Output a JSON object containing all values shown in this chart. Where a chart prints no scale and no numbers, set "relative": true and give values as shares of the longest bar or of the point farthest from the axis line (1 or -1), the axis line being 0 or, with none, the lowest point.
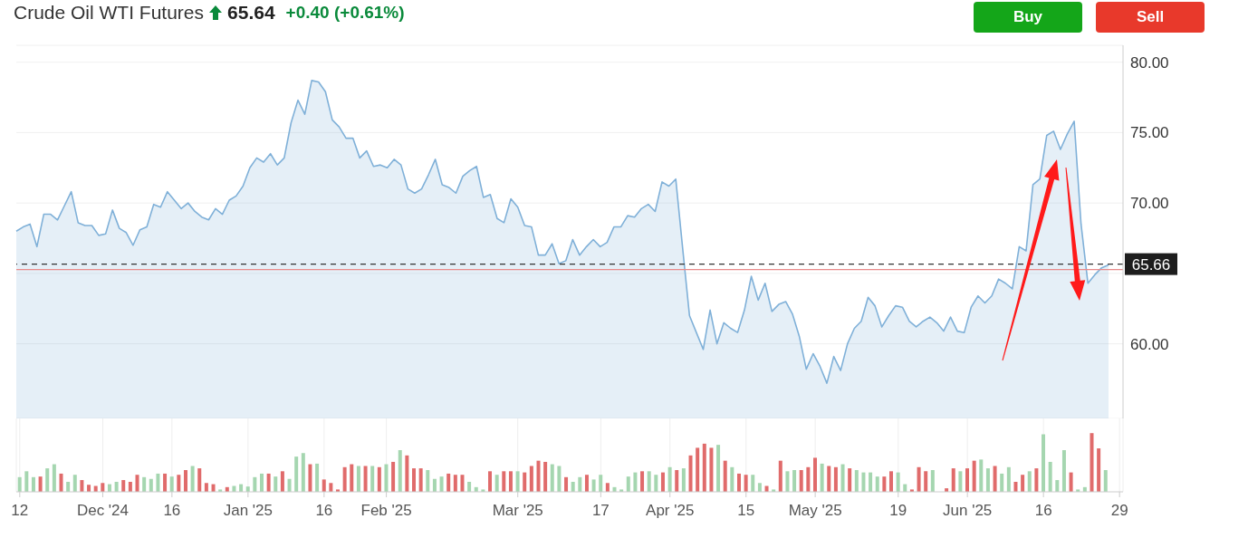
{
  "chart_data": [
    {
      "type": "area",
      "title": "Crude Oil WTI Futures",
      "annotations": [
        "65.64",
        "+0.40 (+0.61%)",
        "Buy",
        "Sell"
      ],
      "categories": [
        null,
        null,
        null,
        null,
        null,
        null,
        null,
        null,
        null,
        null,
        null,
        null,
        null,
        null,
        null,
        null,
        null,
        null,
        null,
        null,
        null,
        null,
        null,
        null,
        null,
        null,
        null,
        null,
        null,
        null,
        null,
        null,
        null,
        null,
        null,
        null,
        null,
        null,
        null,
        null,
        null,
        null,
        null,
        null,
        null,
        null,
        null,
        null,
        null,
        null,
        null,
        null,
        null,
        null,
        null,
        null,
        null,
        null,
        null,
        null,
        null,
        null,
        null,
        null,
        null,
        null,
        null,
        null,
        null,
        null,
        null,
        null,
        null,
        null,
        null,
        null,
        null,
        null,
        null,
        null,
        null,
        null,
        null,
        null,
        null,
        null,
        null,
        null,
        null,
        null,
        null,
        null,
        null,
        null,
        null,
        null,
        null,
        null,
        null,
        null,
        null,
        null,
        null,
        null,
        null,
        null,
        null,
        null,
        null,
        null,
        null,
        null,
        null,
        null,
        null,
        null,
        null,
        null,
        null,
        null,
        null,
        null,
        null,
        null,
        null,
        null,
        null,
        null,
        null,
        null,
        null,
        null,
        null,
        null,
        null,
        null,
        null,
        null,
        null,
        null,
        null,
        null,
        null,
        null,
        null,
        null,
        null,
        null,
        null,
        null,
        null,
        null,
        null,
        null,
        null,
        null,
        null,
        null,
        null,
        null
      ],
      "values": [
        68.0,
        68.3,
        68.5,
        66.9,
        69.2,
        69.2,
        68.8,
        69.8,
        70.8,
        68.6,
        68.4,
        68.4,
        67.7,
        67.8,
        69.5,
        68.2,
        67.9,
        67.0,
        68.1,
        68.3,
        69.9,
        69.7,
        70.8,
        70.2,
        69.6,
        70.0,
        69.4,
        69.0,
        68.8,
        69.6,
        69.2,
        70.2,
        70.5,
        71.2,
        72.5,
        73.2,
        72.9,
        73.5,
        72.7,
        73.2,
        75.7,
        77.3,
        76.3,
        78.7,
        78.6,
        77.9,
        75.9,
        75.4,
        74.6,
        74.6,
        73.2,
        73.7,
        72.6,
        72.7,
        72.5,
        73.1,
        72.7,
        71.0,
        70.7,
        71.0,
        72.0,
        73.1,
        71.3,
        71.1,
        70.7,
        71.9,
        72.3,
        72.6,
        70.4,
        70.6,
        68.9,
        68.6,
        70.3,
        69.7,
        68.4,
        68.3,
        66.3,
        66.3,
        67.1,
        65.7,
        65.9,
        67.4,
        66.3,
        66.9,
        67.4,
        66.9,
        67.2,
        68.3,
        68.3,
        69.1,
        69.0,
        69.6,
        69.9,
        69.4,
        71.5,
        71.2,
        71.7,
        66.8,
        62.0,
        60.8,
        59.6,
        62.4,
        60.0,
        61.5,
        61.1,
        60.8,
        62.4,
        64.8,
        63.1,
        64.3,
        62.3,
        62.8,
        63.0,
        62.1,
        60.5,
        58.2,
        59.3,
        58.4,
        57.2,
        59.1,
        58.1,
        60.0,
        61.1,
        61.6,
        63.3,
        62.7,
        61.2,
        62.0,
        62.7,
        62.6,
        61.6,
        61.2,
        61.6,
        61.9,
        61.5,
        60.9,
        61.9,
        60.9,
        60.8,
        62.6,
        63.4,
        62.9,
        63.4,
        64.6,
        64.3,
        63.9,
        66.9,
        66.6,
        71.3,
        71.7,
        74.8,
        75.1,
        73.8,
        74.9,
        75.8,
        68.5,
        64.3,
        64.9,
        65.4,
        65.6
      ],
      "color": "#7fb0d8",
      "ylim": [
        54.7,
        81.2
      ],
      "yticks": [
        {
          "value": 60,
          "label": "60.00"
        },
        {
          "value": 65,
          "label": null
        },
        {
          "value": 70,
          "label": "70.00"
        },
        {
          "value": 75,
          "label": "75.00"
        },
        {
          "value": 80,
          "label": "80.00"
        }
      ],
      "ref_lines": [
        {
          "axis": "y",
          "value": 65.66,
          "label": "65.66",
          "color": "#333333",
          "line_style": "dashed"
        },
        {
          "axis": "y",
          "value": 65.27,
          "color": "#e88a8a",
          "line_style": "solid"
        }
      ],
      "grid": "y",
      "tick_labels": "y"
    },
    {
      "type": "bar",
      "relative": true,
      "categories": [
        "12",
        null,
        null,
        null,
        null,
        null,
        null,
        null,
        null,
        null,
        null,
        null,
        "Dec '24",
        null,
        null,
        null,
        null,
        null,
        null,
        null,
        null,
        null,
        "16",
        null,
        null,
        null,
        null,
        null,
        null,
        null,
        null,
        null,
        null,
        "Jan '25",
        null,
        null,
        null,
        null,
        null,
        null,
        null,
        null,
        null,
        null,
        "16",
        null,
        null,
        null,
        null,
        null,
        null,
        null,
        null,
        "Feb '25",
        null,
        null,
        null,
        null,
        null,
        null,
        null,
        null,
        null,
        null,
        null,
        null,
        null,
        null,
        null,
        null,
        null,
        null,
        "Mar '25",
        null,
        null,
        null,
        null,
        null,
        null,
        null,
        null,
        null,
        null,
        null,
        "17",
        null,
        null,
        null,
        null,
        null,
        null,
        null,
        null,
        null,
        "Apr '25",
        null,
        null,
        null,
        null,
        null,
        null,
        null,
        null,
        null,
        null,
        "15",
        null,
        null,
        null,
        null,
        null,
        null,
        null,
        null,
        null,
        "May '25",
        null,
        null,
        null,
        null,
        null,
        null,
        null,
        null,
        null,
        null,
        null,
        "19",
        null,
        null,
        null,
        null,
        null,
        null,
        null,
        null,
        null,
        "Jun '25",
        null,
        null,
        null,
        null,
        null,
        null,
        null,
        null,
        null,
        null,
        "16",
        null,
        null,
        null,
        null,
        null,
        null,
        null,
        null,
        null,
        null,
        "29"
      ],
      "values": [
        0.25,
        0.35,
        0.25,
        0.26,
        0.4,
        0.47,
        0.31,
        0.17,
        0.29,
        0.2,
        0.12,
        0.1,
        0.15,
        0.13,
        0.17,
        0.2,
        0.17,
        0.29,
        0.25,
        0.22,
        0.31,
        0.31,
        0.26,
        0.29,
        0.37,
        0.44,
        0.4,
        0.15,
        0.13,
        0.04,
        0.08,
        0.1,
        0.13,
        0.09,
        0.25,
        0.31,
        0.31,
        0.26,
        0.35,
        0.22,
        0.6,
        0.66,
        0.47,
        0.48,
        0.21,
        0.15,
        0.04,
        0.42,
        0.47,
        0.44,
        0.44,
        0.44,
        0.42,
        0.47,
        0.51,
        0.71,
        0.62,
        0.4,
        0.4,
        0.37,
        0.22,
        0.26,
        0.31,
        0.29,
        0.29,
        0.17,
        0.08,
        0.04,
        0.35,
        0.29,
        0.35,
        0.35,
        0.35,
        0.33,
        0.44,
        0.53,
        0.51,
        0.47,
        0.44,
        0.25,
        0.17,
        0.25,
        0.29,
        0.21,
        0.29,
        0.15,
        0.08,
        0.04,
        0.26,
        0.33,
        0.35,
        0.35,
        0.29,
        0.33,
        0.42,
        0.37,
        0.4,
        0.62,
        0.75,
        0.82,
        0.75,
        0.8,
        0.53,
        0.42,
        0.31,
        0.29,
        0.29,
        0.15,
        0.1,
        0.04,
        0.53,
        0.35,
        0.37,
        0.37,
        0.42,
        0.58,
        0.48,
        0.44,
        0.42,
        0.47,
        0.4,
        0.37,
        0.33,
        0.33,
        0.26,
        0.26,
        0.35,
        0.33,
        0.13,
        0.04,
        0.42,
        0.35,
        0.37,
        null,
        0.06,
        0.4,
        0.35,
        0.4,
        0.53,
        0.55,
        0.4,
        0.44,
        0.31,
        0.42,
        0.17,
        0.29,
        0.35,
        0.4,
        0.98,
        0.51,
        0.2,
        0.71,
        0.33,
        0.04,
        0.08,
        1,
        0.74,
        0.37,
        null,
        null
      ],
      "colors": [
        "#a5d6b0",
        "#a5d6b0",
        "#a5d6b0",
        "#e06b6b",
        "#a5d6b0",
        "#a5d6b0",
        "#e06b6b",
        "#a5d6b0",
        "#a5d6b0",
        "#e06b6b",
        "#e06b6b",
        "#e06b6b",
        "#e06b6b",
        "#a5d6b0",
        "#a5d6b0",
        "#e06b6b",
        "#e06b6b",
        "#e06b6b",
        "#a5d6b0",
        "#a5d6b0",
        "#a5d6b0",
        "#e06b6b",
        "#a5d6b0",
        "#e06b6b",
        "#e06b6b",
        "#a5d6b0",
        "#e06b6b",
        "#e06b6b",
        "#e06b6b",
        "#a5d6b0",
        "#e06b6b",
        "#a5d6b0",
        "#a5d6b0",
        "#a5d6b0",
        "#a5d6b0",
        "#a5d6b0",
        "#e06b6b",
        "#a5d6b0",
        "#e06b6b",
        "#a5d6b0",
        "#a5d6b0",
        "#a5d6b0",
        "#e06b6b",
        "#a5d6b0",
        "#e06b6b",
        "#e06b6b",
        "#e06b6b",
        "#e06b6b",
        "#e06b6b",
        "#a5d6b0",
        "#e06b6b",
        "#a5d6b0",
        "#e06b6b",
        "#a5d6b0",
        "#e06b6b",
        "#a5d6b0",
        "#e06b6b",
        "#e06b6b",
        "#e06b6b",
        "#a5d6b0",
        "#a5d6b0",
        "#a5d6b0",
        "#e06b6b",
        "#e06b6b",
        "#e06b6b",
        "#a5d6b0",
        "#a5d6b0",
        "#a5d6b0",
        "#e06b6b",
        "#a5d6b0",
        "#e06b6b",
        "#e06b6b",
        "#a5d6b0",
        "#e06b6b",
        "#e06b6b",
        "#e06b6b",
        "#e06b6b",
        "#a5d6b0",
        "#a5d6b0",
        "#e06b6b",
        "#a5d6b0",
        "#a5d6b0",
        "#e06b6b",
        "#a5d6b0",
        "#a5d6b0",
        "#e06b6b",
        "#a5d6b0",
        "#a5d6b0",
        "#a5d6b0",
        "#a5d6b0",
        "#e06b6b",
        "#a5d6b0",
        "#a5d6b0",
        "#e06b6b",
        "#a5d6b0",
        "#e06b6b",
        "#a5d6b0",
        "#e06b6b",
        "#e06b6b",
        "#e06b6b",
        "#e06b6b",
        "#a5d6b0",
        "#e06b6b",
        "#a5d6b0",
        "#e06b6b",
        "#e06b6b",
        "#a5d6b0",
        "#a5d6b0",
        "#e06b6b",
        "#a5d6b0",
        "#e06b6b",
        "#a5d6b0",
        "#a5d6b0",
        "#e06b6b",
        "#e06b6b",
        "#e06b6b",
        "#a5d6b0",
        "#e06b6b",
        "#e06b6b",
        "#a5d6b0",
        "#e06b6b",
        "#a5d6b0",
        "#a5d6b0",
        "#a5d6b0",
        "#a5d6b0",
        "#e06b6b",
        "#e06b6b",
        "#a5d6b0",
        "#a5d6b0",
        "#e06b6b",
        "#e06b6b",
        "#e06b6b",
        "#a5d6b0",
        "#a5d6b0",
        "#e06b6b",
        "#e06b6b",
        "#a5d6b0",
        "#e06b6b",
        "#e06b6b",
        "#a5d6b0",
        "#a5d6b0",
        "#e06b6b",
        "#a5d6b0",
        "#a5d6b0",
        "#e06b6b",
        "#e06b6b",
        "#a5d6b0",
        "#e06b6b",
        "#a5d6b0",
        "#a5d6b0",
        "#a5d6b0",
        "#a5d6b0",
        "#e06b6b",
        "#a5d6b0",
        "#a5d6b0",
        "#e06b6b",
        "#e06b6b",
        "#a5d6b0",
        "#a5d6b0",
        "#a5d6b0"
      ],
      "grid": "x",
      "tick_labels": "x"
    }
  ]
}
